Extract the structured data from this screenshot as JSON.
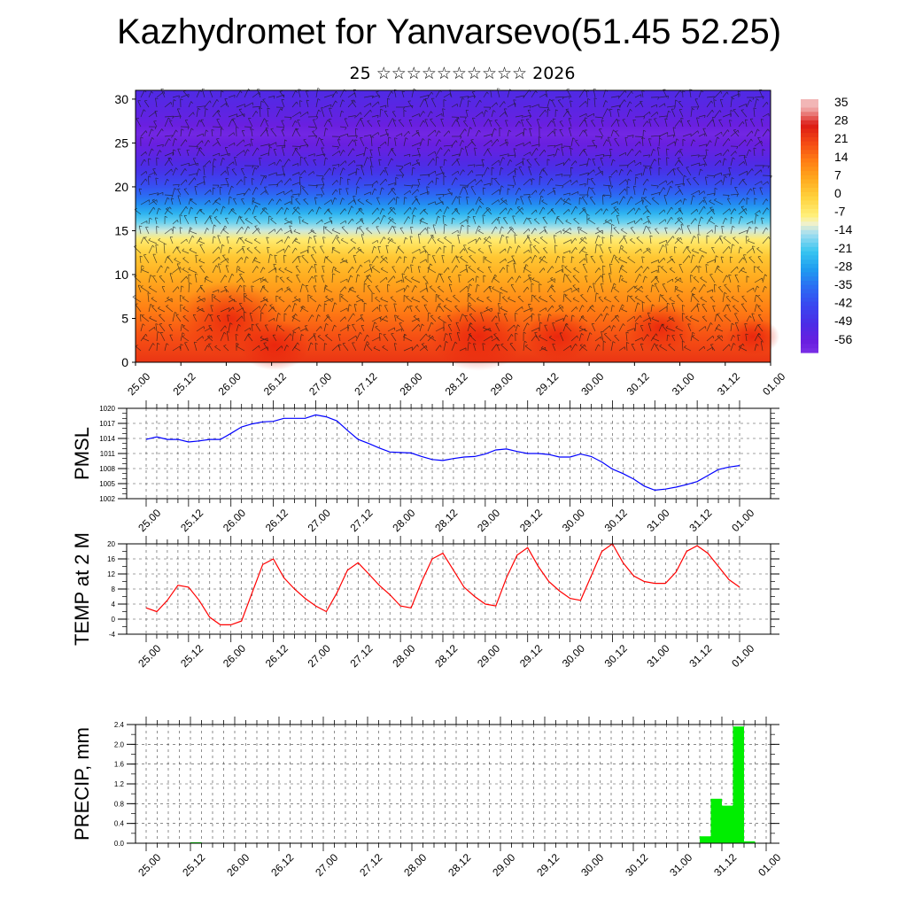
{
  "title": "Kazhydromet for Yanvarsevo(51.45 52.25)",
  "subtitle": "25 ☆☆☆☆☆☆☆☆☆☆ 2026",
  "time_labels": [
    "25.00",
    "25.12",
    "26.00",
    "26.12",
    "27.00",
    "27.12",
    "28.00",
    "28.12",
    "29.00",
    "29.12",
    "30.00",
    "30.12",
    "31.00",
    "31.12",
    "01.00"
  ],
  "colors": {
    "pmsl": "#0000ff",
    "temp": "#ff0000",
    "precip": "#00ee00"
  },
  "chart_data": [
    {
      "type": "heatmap",
      "title": "",
      "xlabel": "",
      "ylabel": "",
      "ylim": [
        0,
        31
      ],
      "yticks": [
        0,
        5,
        10,
        15,
        20,
        25,
        30
      ],
      "colorbar_labels": [
        "35",
        "28",
        "21",
        "14",
        "7",
        "0",
        "-7",
        "-14",
        "-21",
        "-28",
        "-35",
        "-42",
        "-49",
        "-56"
      ],
      "colorbar_values": [
        35,
        28,
        21,
        14,
        7,
        0,
        -7,
        -14,
        -21,
        -28,
        -35,
        -42,
        -49,
        -56
      ],
      "temperature_profile": {
        "height": [
          0,
          3,
          6,
          9,
          12,
          14,
          16,
          18,
          20,
          22,
          24,
          26,
          28,
          31
        ],
        "temp": [
          24,
          20,
          14,
          8,
          2,
          -6,
          -18,
          -30,
          -40,
          -48,
          -54,
          -58,
          -54,
          -50
        ]
      },
      "wind_barbs": true
    },
    {
      "type": "line",
      "ylabel": "PMSL",
      "ylim": [
        1002,
        1020
      ],
      "yticks": [
        1002,
        1005,
        1008,
        1011,
        1014,
        1017,
        1020
      ],
      "x": [
        0,
        1,
        2,
        3,
        4,
        5,
        6,
        7,
        8,
        9,
        10,
        11,
        12,
        13,
        14,
        15,
        16,
        17,
        18,
        19,
        20,
        21,
        22,
        23,
        24,
        25,
        26,
        27,
        28,
        29,
        30,
        31,
        32,
        33,
        34,
        35,
        36,
        37,
        38,
        39,
        40,
        41,
        42,
        43,
        44,
        45,
        46,
        47,
        48,
        49,
        50,
        51,
        52,
        53,
        54,
        55,
        56
      ],
      "series": [
        {
          "values": [
            1013.8,
            1014.3,
            1013.8,
            1013.8,
            1013.3,
            1013.5,
            1013.8,
            1013.8,
            1015,
            1016.3,
            1016.9,
            1017.3,
            1017.4,
            1018,
            1018,
            1018,
            1018.7,
            1018.3,
            1017.5,
            1015.6,
            1013.8,
            1013,
            1012.1,
            1011.3,
            1011.2,
            1011.1,
            1010.4,
            1009.8,
            1009.6,
            1010,
            1010.3,
            1010.4,
            1010.9,
            1011.7,
            1011.9,
            1011.4,
            1011,
            1011,
            1010.8,
            1010.3,
            1010.3,
            1010.9,
            1010.4,
            1009.3,
            1007.9,
            1007,
            1005.9,
            1004.5,
            1003.7,
            1003.9,
            1004.3,
            1004.8,
            1005.4,
            1006.6,
            1007.8,
            1008.3,
            1008.6
          ]
        }
      ]
    },
    {
      "type": "line",
      "ylabel": "TEMP at 2 M",
      "ylim": [
        -4,
        20
      ],
      "yticks": [
        -4,
        0,
        4,
        8,
        12,
        16,
        20
      ],
      "x": [
        0,
        1,
        2,
        3,
        4,
        5,
        6,
        7,
        8,
        9,
        10,
        11,
        12,
        13,
        14,
        15,
        16,
        17,
        18,
        19,
        20,
        21,
        22,
        23,
        24,
        25,
        26,
        27,
        28,
        29,
        30,
        31,
        32,
        33,
        34,
        35,
        36,
        37,
        38,
        39,
        40,
        41,
        42,
        43,
        44,
        45,
        46,
        47,
        48,
        49,
        50,
        51,
        52,
        53,
        54,
        55,
        56
      ],
      "series": [
        {
          "values": [
            3,
            2,
            5,
            9,
            8.5,
            5,
            0.5,
            -1.5,
            -1.5,
            -0.5,
            7,
            14.5,
            16,
            11,
            8,
            5.5,
            3.5,
            2,
            7,
            13,
            15,
            12,
            9,
            6.5,
            3.5,
            3,
            10,
            16,
            17.5,
            13,
            8.5,
            6,
            4,
            3.5,
            11,
            17,
            19,
            14,
            10,
            7.5,
            5.5,
            5,
            11.5,
            18,
            20,
            15,
            11.5,
            10,
            9.5,
            9.5,
            12.5,
            18,
            19.5,
            17.5,
            14,
            10.5,
            8.5
          ]
        }
      ]
    },
    {
      "type": "bar",
      "ylabel": "PRECIP, mm",
      "ylim": [
        0,
        2.4
      ],
      "yticks": [
        0.0,
        0.4,
        0.8,
        1.2,
        1.6,
        2.0,
        2.4
      ],
      "x": [
        4,
        50,
        51,
        52,
        53,
        54
      ],
      "values": [
        0.02,
        0.14,
        0.9,
        0.76,
        2.36,
        0.04
      ]
    }
  ]
}
